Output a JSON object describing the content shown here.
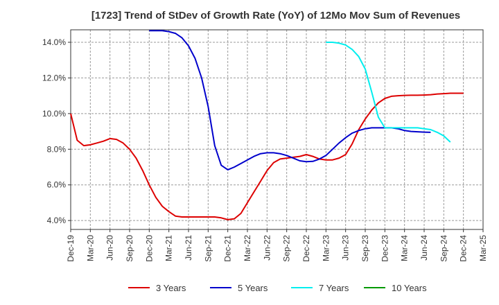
{
  "chart_data": {
    "type": "line",
    "title": "[1723]  Trend of StDev of Growth Rate (YoY) of 12Mo Mov Sum of Revenues",
    "xlabel": "",
    "ylabel": "",
    "x_ticks": [
      "Dec-19",
      "Mar-20",
      "Jun-20",
      "Sep-20",
      "Dec-20",
      "Mar-21",
      "Jun-21",
      "Sep-21",
      "Dec-21",
      "Mar-22",
      "Jun-22",
      "Sep-22",
      "Dec-22",
      "Mar-23",
      "Jun-23",
      "Sep-23",
      "Dec-23",
      "Mar-24",
      "Jun-24",
      "Sep-24",
      "Dec-24",
      "Mar-25"
    ],
    "y_ticks": [
      "4.0%",
      "6.0%",
      "8.0%",
      "10.0%",
      "12.0%",
      "14.0%"
    ],
    "ylim": [
      3.5,
      14.7
    ],
    "xlim": [
      0,
      63
    ],
    "grid": true,
    "legend_position": "bottom",
    "series": [
      {
        "name": "3 Years",
        "color": "#dd0000",
        "start": 0,
        "values": [
          10.0,
          8.5,
          8.2,
          8.25,
          8.35,
          8.45,
          8.6,
          8.55,
          8.35,
          8.0,
          7.5,
          6.8,
          6.0,
          5.3,
          4.8,
          4.5,
          4.25,
          4.2,
          4.2,
          4.2,
          4.2,
          4.2,
          4.2,
          4.15,
          4.05,
          4.1,
          4.4,
          5.0,
          5.6,
          6.2,
          6.8,
          7.25,
          7.45,
          7.5,
          7.55,
          7.6,
          7.7,
          7.6,
          7.45,
          7.4,
          7.4,
          7.5,
          7.7,
          8.3,
          9.1,
          9.7,
          10.2,
          10.6,
          10.85,
          10.97,
          11.0,
          11.02,
          11.03,
          11.03,
          11.04,
          11.06,
          11.1,
          11.12,
          11.14,
          11.14,
          11.14
        ]
      },
      {
        "name": "5 Years",
        "color": "#0000cc",
        "start": 12,
        "values": [
          14.65,
          14.65,
          14.65,
          14.6,
          14.5,
          14.25,
          13.8,
          13.1,
          12.0,
          10.4,
          8.2,
          7.1,
          6.85,
          7.0,
          7.2,
          7.4,
          7.6,
          7.75,
          7.8,
          7.8,
          7.75,
          7.65,
          7.5,
          7.35,
          7.3,
          7.32,
          7.45,
          7.65,
          8.0,
          8.35,
          8.65,
          8.9,
          9.05,
          9.15,
          9.2,
          9.2,
          9.2,
          9.2,
          9.15,
          9.05,
          9.0,
          8.98,
          8.96,
          8.95
        ]
      },
      {
        "name": "7 Years",
        "color": "#00eeee",
        "start": 39,
        "values": [
          14.0,
          14.0,
          13.95,
          13.85,
          13.6,
          13.2,
          12.5,
          11.2,
          9.8,
          9.2,
          9.2,
          9.2,
          9.2,
          9.2,
          9.2,
          9.15,
          9.1,
          8.95,
          8.75,
          8.4
        ]
      },
      {
        "name": "10 Years",
        "color": "#009900",
        "start": 0,
        "values": []
      }
    ]
  }
}
